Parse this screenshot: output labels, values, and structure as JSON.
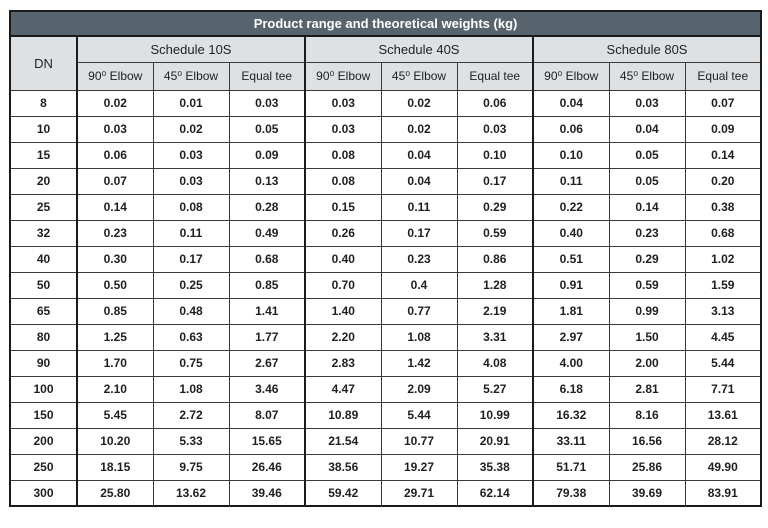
{
  "table": {
    "title": "Product range and theoretical weights (kg)",
    "dn_header": "DN",
    "groups": [
      {
        "label": "Schedule 10S"
      },
      {
        "label": "Schedule 40S"
      },
      {
        "label": "Schedule 80S"
      }
    ],
    "sub_headers": [
      "90⁰ Elbow",
      "45⁰ Elbow",
      "Equal tee"
    ],
    "rows": [
      {
        "dn": "8",
        "values": [
          "0.02",
          "0.01",
          "0.03",
          "0.03",
          "0.02",
          "0.06",
          "0.04",
          "0.03",
          "0.07"
        ]
      },
      {
        "dn": "10",
        "values": [
          "0.03",
          "0.02",
          "0.05",
          "0.03",
          "0.02",
          "0.03",
          "0.06",
          "0.04",
          "0.09"
        ]
      },
      {
        "dn": "15",
        "values": [
          "0.06",
          "0.03",
          "0.09",
          "0.08",
          "0.04",
          "0.10",
          "0.10",
          "0.05",
          "0.14"
        ]
      },
      {
        "dn": "20",
        "values": [
          "0.07",
          "0.03",
          "0.13",
          "0.08",
          "0.04",
          "0.17",
          "0.11",
          "0.05",
          "0.20"
        ]
      },
      {
        "dn": "25",
        "values": [
          "0.14",
          "0.08",
          "0.28",
          "0.15",
          "0.11",
          "0.29",
          "0.22",
          "0.14",
          "0.38"
        ]
      },
      {
        "dn": "32",
        "values": [
          "0.23",
          "0.11",
          "0.49",
          "0.26",
          "0.17",
          "0.59",
          "0.40",
          "0.23",
          "0.68"
        ]
      },
      {
        "dn": "40",
        "values": [
          "0.30",
          "0.17",
          "0.68",
          "0.40",
          "0.23",
          "0.86",
          "0.51",
          "0.29",
          "1.02"
        ]
      },
      {
        "dn": "50",
        "values": [
          "0.50",
          "0.25",
          "0.85",
          "0.70",
          "0.4",
          "1.28",
          "0.91",
          "0.59",
          "1.59"
        ]
      },
      {
        "dn": "65",
        "values": [
          "0.85",
          "0.48",
          "1.41",
          "1.40",
          "0.77",
          "2.19",
          "1.81",
          "0.99",
          "3.13"
        ]
      },
      {
        "dn": "80",
        "values": [
          "1.25",
          "0.63",
          "1.77",
          "2.20",
          "1.08",
          "3.31",
          "2.97",
          "1.50",
          "4.45"
        ]
      },
      {
        "dn": "90",
        "values": [
          "1.70",
          "0.75",
          "2.67",
          "2.83",
          "1.42",
          "4.08",
          "4.00",
          "2.00",
          "5.44"
        ]
      },
      {
        "dn": "100",
        "values": [
          "2.10",
          "1.08",
          "3.46",
          "4.47",
          "2.09",
          "5.27",
          "6.18",
          "2.81",
          "7.71"
        ]
      },
      {
        "dn": "150",
        "values": [
          "5.45",
          "2.72",
          "8.07",
          "10.89",
          "5.44",
          "10.99",
          "16.32",
          "8.16",
          "13.61"
        ]
      },
      {
        "dn": "200",
        "values": [
          "10.20",
          "5.33",
          "15.65",
          "21.54",
          "10.77",
          "20.91",
          "33.11",
          "16.56",
          "28.12"
        ]
      },
      {
        "dn": "250",
        "values": [
          "18.15",
          "9.75",
          "26.46",
          "38.56",
          "19.27",
          "35.38",
          "51.71",
          "25.86",
          "49.90"
        ]
      },
      {
        "dn": "300",
        "values": [
          "25.80",
          "13.62",
          "39.46",
          "59.42",
          "29.71",
          "62.14",
          "79.38",
          "39.69",
          "83.91"
        ]
      }
    ]
  },
  "colors": {
    "title_bar_bg": "#57646e",
    "title_text": "#ffffff",
    "header_bg": "#dde1e4",
    "border": "#1b1b1b",
    "body_text": "#1f1f1f"
  }
}
